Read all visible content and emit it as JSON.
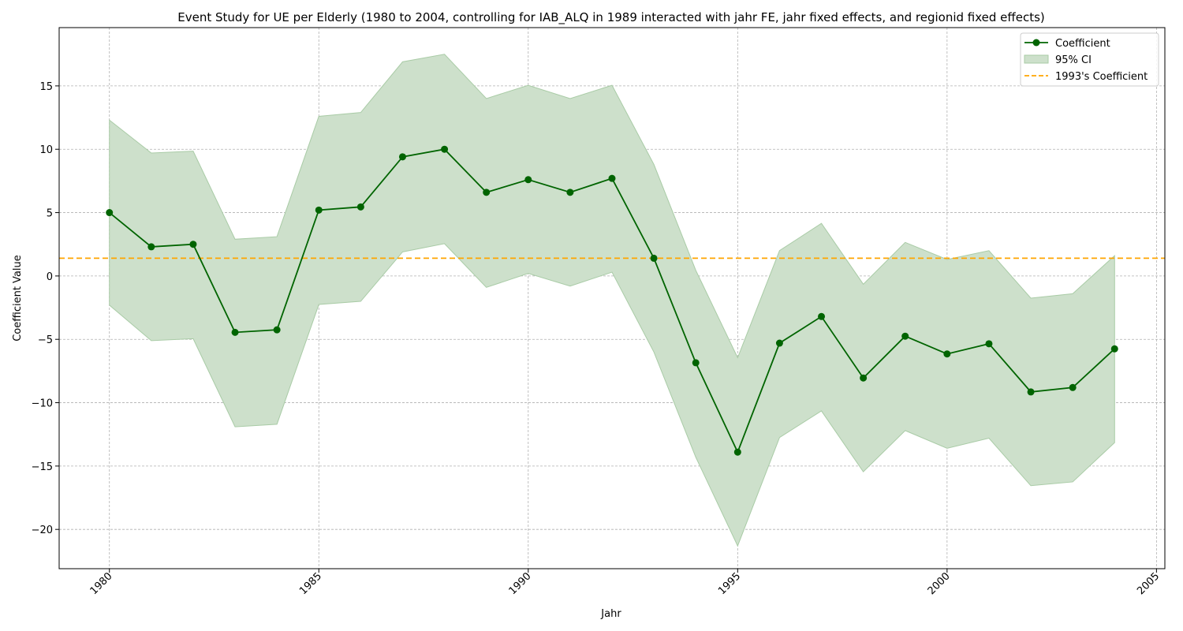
{
  "chart_data": {
    "type": "line",
    "title": "Event Study for UE per Elderly (1980 to 2004, controlling for IAB_ALQ in 1989 interacted with jahr FE, jahr fixed effects, and regionid fixed effects)",
    "xlabel": "Jahr",
    "ylabel": "Coefficient Value",
    "xlim": [
      1978.8,
      2005.2
    ],
    "ylim": [
      -23.1,
      19.6
    ],
    "xticks": [
      1980,
      1985,
      1990,
      1995,
      2000,
      2005
    ],
    "xtick_labels": [
      "1980",
      "1985",
      "1990",
      "1995",
      "2000",
      "2005"
    ],
    "yticks": [
      -20,
      -15,
      -10,
      -5,
      0,
      5,
      10,
      15
    ],
    "ytick_labels": [
      "−20",
      "−15",
      "−10",
      "−5",
      "0",
      "5",
      "10",
      "15"
    ],
    "grid": true,
    "legend_position": "top-right",
    "x": [
      1980,
      1981,
      1982,
      1983,
      1984,
      1985,
      1986,
      1987,
      1988,
      1989,
      1990,
      1991,
      1992,
      1993,
      1994,
      1995,
      1996,
      1997,
      1998,
      1999,
      2000,
      2001,
      2002,
      2003,
      2004
    ],
    "series": [
      {
        "name": "Coefficient",
        "values": [
          5.0,
          2.3,
          2.5,
          -4.45,
          -4.25,
          5.2,
          5.45,
          9.4,
          10.0,
          6.6,
          7.6,
          6.6,
          7.7,
          1.4,
          -6.85,
          -13.9,
          -5.3,
          -3.2,
          -8.05,
          -4.75,
          -6.15,
          -5.35,
          -9.15,
          -8.8,
          -5.75
        ],
        "color": "#006400"
      }
    ],
    "ci": {
      "name": "95% CI",
      "lower": [
        -2.3,
        -5.1,
        -4.95,
        -11.9,
        -11.7,
        -2.25,
        -2.0,
        1.9,
        2.55,
        -0.9,
        0.2,
        -0.8,
        0.3,
        -6.0,
        -14.3,
        -21.3,
        -12.75,
        -10.65,
        -15.45,
        -12.2,
        -13.6,
        -12.8,
        -16.55,
        -16.25,
        -13.15
      ],
      "upper": [
        12.3,
        9.7,
        9.85,
        2.9,
        3.1,
        12.6,
        12.9,
        16.9,
        17.5,
        14.0,
        15.05,
        14.0,
        15.05,
        8.8,
        0.45,
        -6.45,
        2.0,
        4.15,
        -0.65,
        2.65,
        1.3,
        2.0,
        -1.75,
        -1.4,
        1.6
      ],
      "color": "#cde0cb",
      "edge_color": "#a9cba6"
    },
    "reference_line": {
      "name": "1993's Coefficient",
      "value": 1.4,
      "color": "#ffa500"
    }
  }
}
